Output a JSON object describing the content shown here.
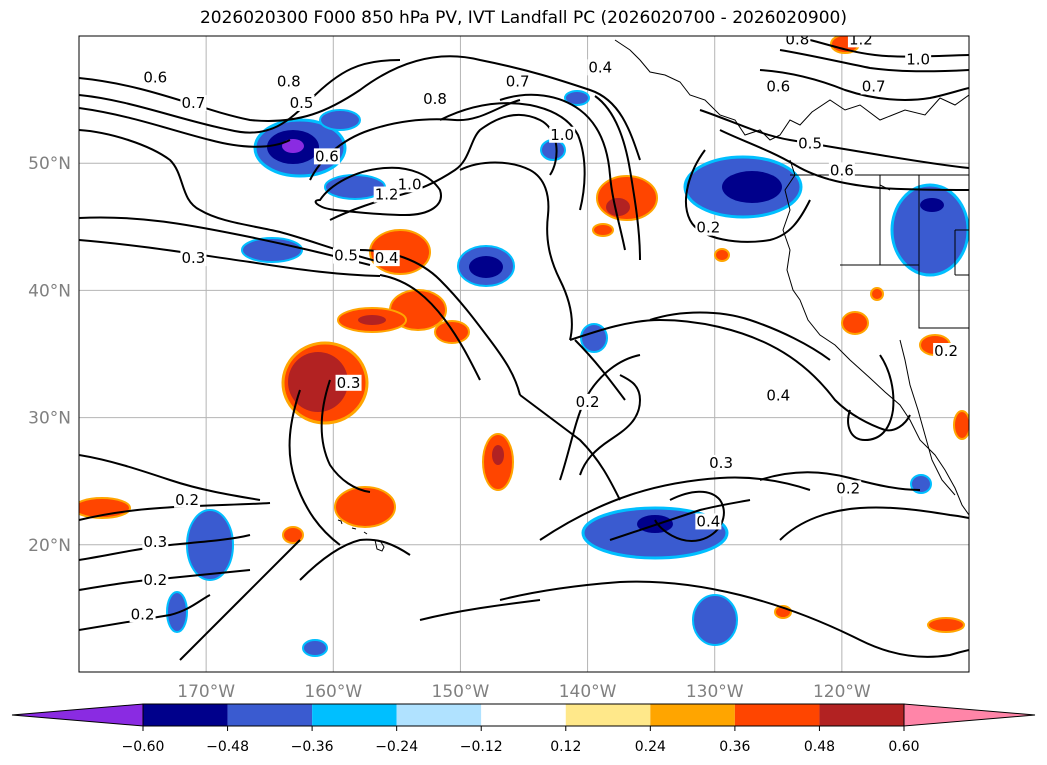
{
  "title": "2026020300 F000 850 hPa PV, IVT Landfall PC (2026020700 - 2026020900)",
  "map": {
    "lon_range": [
      -180,
      -110
    ],
    "lat_range": [
      10,
      60
    ],
    "lat_ticks": [
      {
        "value": 50,
        "label": "50°N"
      },
      {
        "value": 40,
        "label": "40°N"
      },
      {
        "value": 30,
        "label": "30°N"
      },
      {
        "value": 20,
        "label": "20°N"
      }
    ],
    "lon_ticks": [
      {
        "value": -170,
        "label": "170°W"
      },
      {
        "value": -160,
        "label": "160°W"
      },
      {
        "value": -150,
        "label": "150°W"
      },
      {
        "value": -140,
        "label": "140°W"
      },
      {
        "value": -130,
        "label": "130°W"
      },
      {
        "value": -120,
        "label": "120°W"
      }
    ],
    "contour_labels": [
      {
        "text": "0.6",
        "lon": -174,
        "lat": 56.5
      },
      {
        "text": "0.7",
        "lon": -171,
        "lat": 54.5
      },
      {
        "text": "0.8",
        "lon": -163.5,
        "lat": 56.2
      },
      {
        "text": "0.5",
        "lon": -162.5,
        "lat": 54.5
      },
      {
        "text": "0.6",
        "lon": -160.5,
        "lat": 50.3
      },
      {
        "text": "0.8",
        "lon": -152,
        "lat": 54.8
      },
      {
        "text": "0.7",
        "lon": -145.5,
        "lat": 56.2
      },
      {
        "text": "0.4",
        "lon": -139,
        "lat": 57.3
      },
      {
        "text": "1.0",
        "lon": -142,
        "lat": 52.0
      },
      {
        "text": "1.2",
        "lon": -155.8,
        "lat": 47.3
      },
      {
        "text": "1.0",
        "lon": -154,
        "lat": 48.1
      },
      {
        "text": "0.5",
        "lon": -159,
        "lat": 42.5
      },
      {
        "text": "0.4",
        "lon": -155.8,
        "lat": 42.3
      },
      {
        "text": "0.3",
        "lon": -171,
        "lat": 42.3
      },
      {
        "text": "0.3",
        "lon": -158.8,
        "lat": 32.5
      },
      {
        "text": "0.2",
        "lon": -140,
        "lat": 31.0
      },
      {
        "text": "0.3",
        "lon": -129.5,
        "lat": 26.2
      },
      {
        "text": "0.4",
        "lon": -130.5,
        "lat": 21.6
      },
      {
        "text": "0.2",
        "lon": -171.5,
        "lat": 23.3
      },
      {
        "text": "0.3",
        "lon": -174,
        "lat": 20.0
      },
      {
        "text": "0.2",
        "lon": -174,
        "lat": 17.0
      },
      {
        "text": "0.2",
        "lon": -175,
        "lat": 14.3
      },
      {
        "text": "0.2",
        "lon": -130.5,
        "lat": 44.7
      },
      {
        "text": "0.4",
        "lon": -125,
        "lat": 31.5
      },
      {
        "text": "0.2",
        "lon": -119.5,
        "lat": 24.2
      },
      {
        "text": "0.2",
        "lon": -111.8,
        "lat": 35.0
      },
      {
        "text": "0.5",
        "lon": -122.5,
        "lat": 51.3
      },
      {
        "text": "0.6",
        "lon": -125,
        "lat": 55.8
      },
      {
        "text": "0.7",
        "lon": -117.5,
        "lat": 55.8
      },
      {
        "text": "0.6",
        "lon": -120,
        "lat": 49.2
      },
      {
        "text": "1.0",
        "lon": -114,
        "lat": 57.9
      },
      {
        "text": "1.2",
        "lon": -118.5,
        "lat": 59.5
      },
      {
        "text": "0.8",
        "lon": -123.5,
        "lat": 59.5
      }
    ]
  },
  "colorbar": {
    "colors": [
      "#8a2be2",
      "#00008b",
      "#3a5bd0",
      "#00bfff",
      "#b0e2ff",
      "#ffffff",
      "#ffe88a",
      "#ffa500",
      "#ff4500",
      "#b22222",
      "#ff85a8"
    ],
    "ticks": [
      "−0.60",
      "−0.48",
      "−0.36",
      "−0.24",
      "−0.12",
      "0.12",
      "0.24",
      "0.36",
      "0.48",
      "0.60"
    ]
  }
}
